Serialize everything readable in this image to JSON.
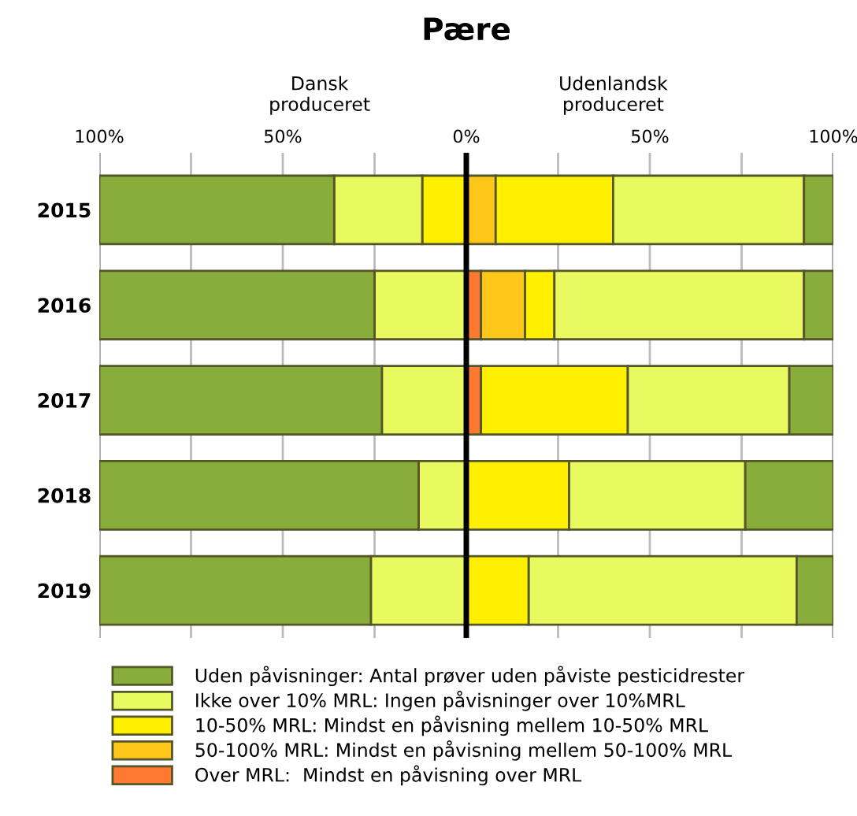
{
  "chart_data": {
    "type": "bar",
    "orientation": "horizontal",
    "stacked": true,
    "title": "Pære",
    "annotations": [
      "Dansk\nproduceret",
      "Udenlandsk\nproduceret"
    ],
    "categories": [
      "2015",
      "2016",
      "2017",
      "2018",
      "2019"
    ],
    "series": [
      {
        "name": "Over MRL:  Mindst en påvisning over MRL",
        "color": "#ff7a30",
        "values": [
          null,
          null,
          null,
          null,
          null
        ]
      },
      {
        "name": "50-100% MRL: Mindst en påvisning mellem 50-100% MRL",
        "color": "#ffc61a",
        "values": [
          null,
          null,
          null,
          null,
          null
        ]
      },
      {
        "name": "10-50% MRL: Mindst en påvisning mellem 10-50% MRL",
        "color": "#fff000",
        "values": [
          -12,
          null,
          null,
          null,
          null
        ]
      },
      {
        "name": "Ikke over 10% MRL: Ingen påvisninger over 10%MRL",
        "color": "#e8fa60",
        "values": [
          -24,
          -25,
          -23,
          -13,
          -26
        ]
      },
      {
        "name": "Uden påvisninger: Antal prøver uden påviste pesticidrester",
        "color": "#88ad3a",
        "values": [
          -64,
          -75,
          -77,
          -87,
          -74
        ]
      },
      {
        "color": "#ff7a30",
        "values": [
          null,
          4,
          4,
          null,
          null
        ]
      },
      {
        "color": "#ffc61a",
        "values": [
          8,
          12,
          null,
          null,
          null
        ]
      },
      {
        "color": "#fff000",
        "values": [
          32,
          8,
          40,
          28,
          17
        ]
      },
      {
        "color": "#e8fa60",
        "values": [
          52,
          68,
          44,
          48,
          73
        ]
      },
      {
        "color": "#88ad3a",
        "values": [
          8,
          8,
          12,
          24,
          10
        ]
      }
    ],
    "xlim": [
      -100,
      100
    ],
    "xticks": [
      {
        "value": -100,
        "label": "100%"
      },
      {
        "value": -75,
        "label": null
      },
      {
        "value": -50,
        "label": "50%"
      },
      {
        "value": -25,
        "label": null
      },
      {
        "value": 0,
        "label": "0%"
      },
      {
        "value": 25,
        "label": null
      },
      {
        "value": 50,
        "label": "50%"
      },
      {
        "value": 75,
        "label": null
      },
      {
        "value": 100,
        "label": "100%"
      }
    ],
    "ref_lines": [
      {
        "axis": "x",
        "value": 0,
        "color": "#000000"
      }
    ],
    "grid": "x",
    "legend": "bottom"
  }
}
